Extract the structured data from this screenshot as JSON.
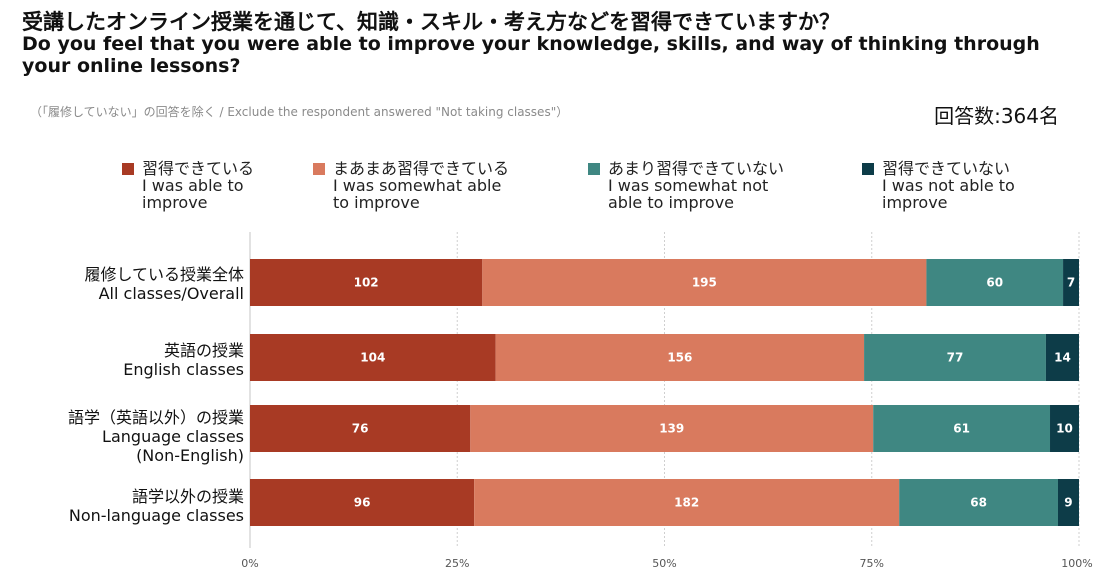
{
  "header": {
    "title_ja": "受講したオンライン授業を通じて、知識・スキル・考え方などを習得できていますか？",
    "title_en": "Do you feel that you were able to improve your knowledge, skills, and way of thinking through your online lessons?",
    "note": "（「履修していない」の回答を除く / Exclude the respondent answered \"Not taking classes\"）",
    "respondents": "回答数:364名"
  },
  "colors": {
    "able": "#a83a24",
    "somewhat_able": "#d97a5e",
    "somewhat_not": "#3f8782",
    "not_able": "#0d3c48",
    "grid": "#cfcfcf"
  },
  "chart_data": {
    "type": "bar",
    "orientation": "horizontal",
    "stacked": "percent",
    "categories": [
      "履修している授業全体\nAll classes/Overall",
      "英語の授業\nEnglish classes",
      "語学（英語以外）の授業\nLanguage classes\n(Non-English)",
      "語学以外の授業\nNon-language classes"
    ],
    "series": [
      {
        "name": "習得できている\nI was able to\nimprove",
        "values": [
          102,
          104,
          76,
          96
        ]
      },
      {
        "name": "まあまあ習得できている\nI was somewhat able\nto improve",
        "values": [
          195,
          156,
          139,
          182
        ]
      },
      {
        "name": "あまり習得できていない\nI was somewhat not\nable to improve",
        "values": [
          60,
          77,
          61,
          68
        ]
      },
      {
        "name": "習得できていない\nI was not able to\nimprove",
        "values": [
          7,
          14,
          10,
          9
        ]
      }
    ],
    "xticks": [
      "0%",
      "25%",
      "50%",
      "75%",
      "100%"
    ],
    "xlim": [
      0,
      100
    ],
    "grid": true,
    "legend": "top"
  }
}
